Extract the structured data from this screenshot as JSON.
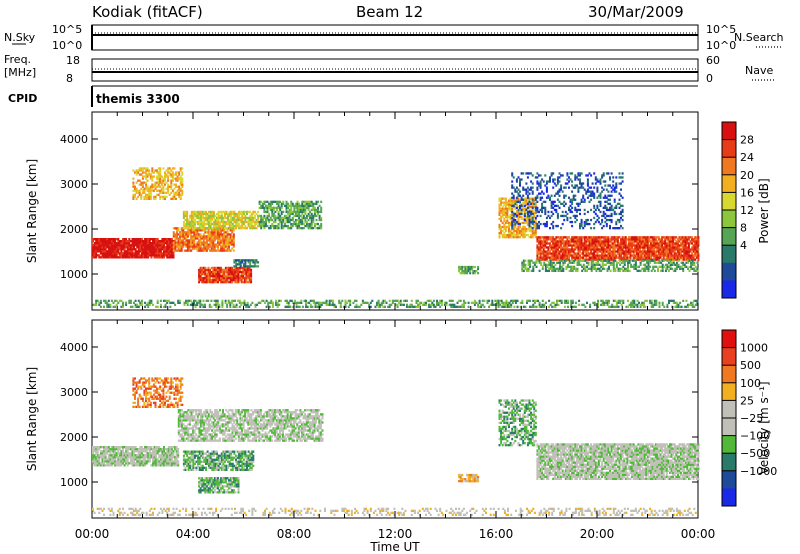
{
  "header": {
    "station": "Kodiak (fitACF)",
    "beam": "Beam 12",
    "date": "30/Mar/2009"
  },
  "top_panels": {
    "nsky_label": "N.Sky",
    "nsky_ticks": [
      "10^5",
      "10^0"
    ],
    "nsearch_label": "N.Search",
    "nsearch_ticks": [
      "10^5",
      "10^0"
    ],
    "freq_label": "Freq.",
    "freq_unit": "[MHz]",
    "freq_ticks": [
      "18",
      "8"
    ],
    "nave_label": "Nave",
    "nave_ticks": [
      "60",
      "0"
    ],
    "cpid_label": "CPID",
    "cpid_value": "themis 3300"
  },
  "chart_data": [
    {
      "type": "heatmap",
      "name": "power",
      "ylabel": "Slant Range [km]",
      "xlabel": "",
      "xlim": [
        0,
        24
      ],
      "ylim": [
        200,
        4600
      ],
      "yticks": [
        1000,
        2000,
        3000,
        4000
      ],
      "colorbar": {
        "label": "Power [dB]",
        "ticks": [
          "28",
          "24",
          "20",
          "16",
          "12",
          "8",
          "4"
        ],
        "colors": [
          "#1a28e8",
          "#1e4a9a",
          "#2a7a6a",
          "#55a555",
          "#8cc63c",
          "#d8d830",
          "#f2b020",
          "#f07820",
          "#e83c18",
          "#d81010"
        ]
      },
      "regions": [
        {
          "t0": 0.0,
          "t1": 24.0,
          "r0": 250,
          "r1": 400,
          "level": 3,
          "density": 0.45
        },
        {
          "t0": 0.0,
          "t1": 3.2,
          "r0": 1350,
          "r1": 1800,
          "level": 9,
          "density": 0.95
        },
        {
          "t0": 3.2,
          "t1": 5.6,
          "r0": 1500,
          "r1": 2000,
          "level": 7,
          "density": 0.85
        },
        {
          "t0": 3.6,
          "t1": 6.6,
          "r0": 2000,
          "r1": 2400,
          "level": 5,
          "density": 0.8
        },
        {
          "t0": 6.6,
          "t1": 9.1,
          "r0": 2000,
          "r1": 2600,
          "level": 3,
          "density": 0.65
        },
        {
          "t0": 4.2,
          "t1": 6.3,
          "r0": 800,
          "r1": 1150,
          "level": 8,
          "density": 0.9
        },
        {
          "t0": 1.6,
          "t1": 3.6,
          "r0": 2650,
          "r1": 3350,
          "level": 6,
          "density": 0.55
        },
        {
          "t0": 5.6,
          "t1": 6.6,
          "r0": 1150,
          "r1": 1300,
          "level": 2,
          "density": 0.7
        },
        {
          "t0": 16.1,
          "t1": 17.6,
          "r0": 1800,
          "r1": 2700,
          "level": 6,
          "density": 0.75
        },
        {
          "t0": 17.6,
          "t1": 24.0,
          "r0": 1300,
          "r1": 1800,
          "level": 8,
          "density": 0.9
        },
        {
          "t0": 17.0,
          "t1": 24.0,
          "r0": 1050,
          "r1": 1300,
          "level": 3,
          "density": 0.55
        },
        {
          "t0": 16.6,
          "t1": 21.0,
          "r0": 2000,
          "r1": 3250,
          "level": 1,
          "density": 0.3
        },
        {
          "t0": 14.5,
          "t1": 15.3,
          "r0": 1000,
          "r1": 1150,
          "level": 3,
          "density": 0.8
        }
      ]
    },
    {
      "type": "heatmap",
      "name": "velocity",
      "ylabel": "Slant Range [km]",
      "xlabel": "Time UT",
      "xlim": [
        0,
        24
      ],
      "ylim": [
        200,
        4600
      ],
      "xticks": [
        "00:00",
        "04:00",
        "08:00",
        "12:00",
        "16:00",
        "20:00",
        "00:00"
      ],
      "yticks": [
        1000,
        2000,
        3000,
        4000
      ],
      "colorbar": {
        "label": "Velocity [m s⁻¹]",
        "ticks": [
          "1000",
          "500",
          "100",
          "25",
          "−25",
          "−100",
          "−500",
          "−1000"
        ],
        "colors": [
          "#1a28e8",
          "#1e4a9a",
          "#2a7a6a",
          "#52b83a",
          "#c0c0b8",
          "#c0c0b8",
          "#f0b020",
          "#f07820",
          "#e84020",
          "#e01010"
        ]
      },
      "regions": [
        {
          "t0": 0.0,
          "t1": 24.0,
          "r0": 250,
          "r1": 400,
          "level": 5,
          "density": 0.3
        },
        {
          "t0": 0.0,
          "t1": 3.4,
          "r0": 1350,
          "r1": 1800,
          "level": 4,
          "density": 0.85
        },
        {
          "t0": 3.4,
          "t1": 9.1,
          "r0": 1900,
          "r1": 2600,
          "level": 4,
          "density": 0.7
        },
        {
          "t0": 3.6,
          "t1": 6.4,
          "r0": 1250,
          "r1": 1700,
          "level": 3,
          "density": 0.75
        },
        {
          "t0": 4.2,
          "t1": 5.8,
          "r0": 750,
          "r1": 1100,
          "level": 3,
          "density": 0.8
        },
        {
          "t0": 1.6,
          "t1": 3.6,
          "r0": 2650,
          "r1": 3300,
          "level": 7,
          "density": 0.5
        },
        {
          "t0": 16.1,
          "t1": 17.6,
          "r0": 1800,
          "r1": 2800,
          "level": 3,
          "density": 0.55
        },
        {
          "t0": 17.6,
          "t1": 24.0,
          "r0": 1050,
          "r1": 1850,
          "level": 4,
          "density": 0.85
        },
        {
          "t0": 14.5,
          "t1": 15.3,
          "r0": 1000,
          "r1": 1150,
          "level": 6,
          "density": 0.8
        }
      ]
    }
  ]
}
